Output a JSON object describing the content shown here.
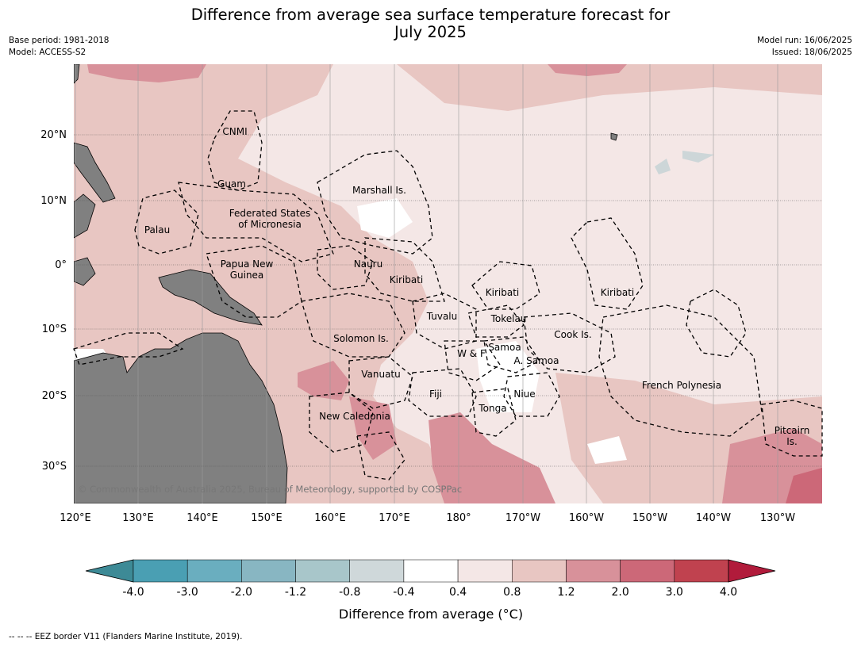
{
  "header": {
    "title_line1": "Difference from average sea surface temperature forecast for",
    "title_line2": "July 2025",
    "base_period": "Base period: 1981-2018",
    "model": "Model: ACCESS-S2",
    "model_run": "Model run: 16/06/2025",
    "issued": "Issued: 18/06/2025"
  },
  "map": {
    "lat_labels": [
      "20°N",
      "10°N",
      "0°",
      "10°S",
      "20°S",
      "30°S"
    ],
    "lon_labels": [
      "120°E",
      "130°E",
      "140°E",
      "150°E",
      "160°E",
      "170°E",
      "180°",
      "170°W",
      "160°W",
      "150°W",
      "140°W",
      "130°W"
    ],
    "regions": [
      {
        "id": "cnmi",
        "lines": [
          "CNMI"
        ]
      },
      {
        "id": "guam",
        "lines": [
          "Guam"
        ]
      },
      {
        "id": "marshall",
        "lines": [
          "Marshall Is."
        ]
      },
      {
        "id": "fsm",
        "lines": [
          "Federated States",
          "of Micronesia"
        ]
      },
      {
        "id": "palau",
        "lines": [
          "Palau"
        ]
      },
      {
        "id": "png",
        "lines": [
          "Papua New",
          "Guinea"
        ]
      },
      {
        "id": "nauru",
        "lines": [
          "Nauru"
        ]
      },
      {
        "id": "kiribati-w",
        "lines": [
          "Kiribati"
        ]
      },
      {
        "id": "kiribati-c",
        "lines": [
          "Kiribati"
        ]
      },
      {
        "id": "kiribati-e",
        "lines": [
          "Kiribati"
        ]
      },
      {
        "id": "tuvalu",
        "lines": [
          "Tuvalu"
        ]
      },
      {
        "id": "tokelau",
        "lines": [
          "Tokelau"
        ]
      },
      {
        "id": "solomon",
        "lines": [
          "Solomon Is."
        ]
      },
      {
        "id": "cook",
        "lines": [
          "Cook Is."
        ]
      },
      {
        "id": "wf",
        "lines": [
          "W & F"
        ]
      },
      {
        "id": "samoa",
        "lines": [
          "Samoa"
        ]
      },
      {
        "id": "asamoa",
        "lines": [
          "A. Samoa"
        ]
      },
      {
        "id": "vanuatu",
        "lines": [
          "Vanuatu"
        ]
      },
      {
        "id": "fiji",
        "lines": [
          "Fiji"
        ]
      },
      {
        "id": "niue",
        "lines": [
          "Niue"
        ]
      },
      {
        "id": "tonga",
        "lines": [
          "Tonga"
        ]
      },
      {
        "id": "frpoly",
        "lines": [
          "French Polynesia"
        ]
      },
      {
        "id": "newcal",
        "lines": [
          "New Caledonia"
        ]
      },
      {
        "id": "pitcairn",
        "lines": [
          "Pitcairn",
          "Is."
        ]
      }
    ],
    "copyright": "© Commonwealth of Australia 2025, Bureau of Meteorology, supported by COSPPac",
    "colors": {
      "land": "#808080",
      "ocean_warm_light": "#f4e7e6",
      "ocean_warm": "#e8c6c2",
      "ocean_warmer": "#d8919a",
      "ocean_hot": "#cc6878",
      "ocean_cool": "#cdd6d8"
    }
  },
  "colorbar": {
    "ticks": [
      "-4.0",
      "-3.0",
      "-2.0",
      "-1.2",
      "-0.8",
      "-0.4",
      "0.4",
      "0.8",
      "1.2",
      "2.0",
      "3.0",
      "4.0"
    ],
    "colors": [
      "#3d8a96",
      "#4a9fb3",
      "#6aaebf",
      "#88b6c2",
      "#a8c6ca",
      "#cfd8da",
      "#ffffff",
      "#f4e7e6",
      "#e8c6c2",
      "#d8919a",
      "#cc6878",
      "#c0424f",
      "#b11b3b"
    ],
    "title": "Difference from average (°C)"
  },
  "footer": {
    "eez": "--  --  -- EEZ border V11 (Flanders Marine Institute, 2019)."
  }
}
